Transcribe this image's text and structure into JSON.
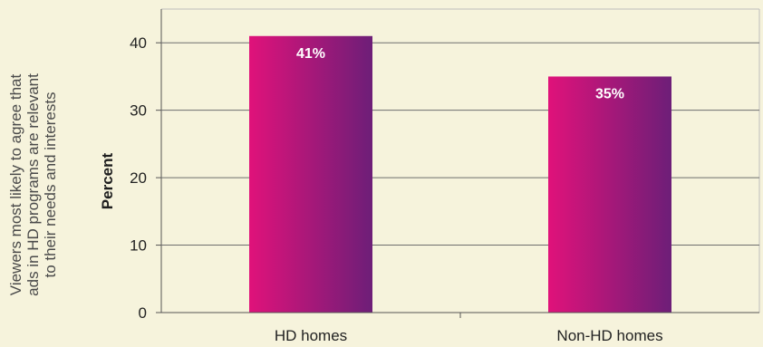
{
  "chart_data": {
    "type": "bar",
    "side_label": [
      "Viewers most likely to agree that",
      "ads in HD programs are relevant",
      "to their needs and interests"
    ],
    "ylabel": "Percent",
    "categories": [
      "HD homes",
      "Non-HD homes"
    ],
    "values": [
      41,
      35
    ],
    "data_labels": [
      "41%",
      "35%"
    ],
    "ylim": [
      0,
      45
    ],
    "yticks": [
      0,
      10,
      20,
      30,
      40
    ],
    "grid": true,
    "colors": {
      "background": "#f6f3dc",
      "bar_left": "#e0127a",
      "bar_right": "#6d1e78",
      "grid": "#6e6e6e",
      "frame": "#bdbdbd"
    }
  }
}
